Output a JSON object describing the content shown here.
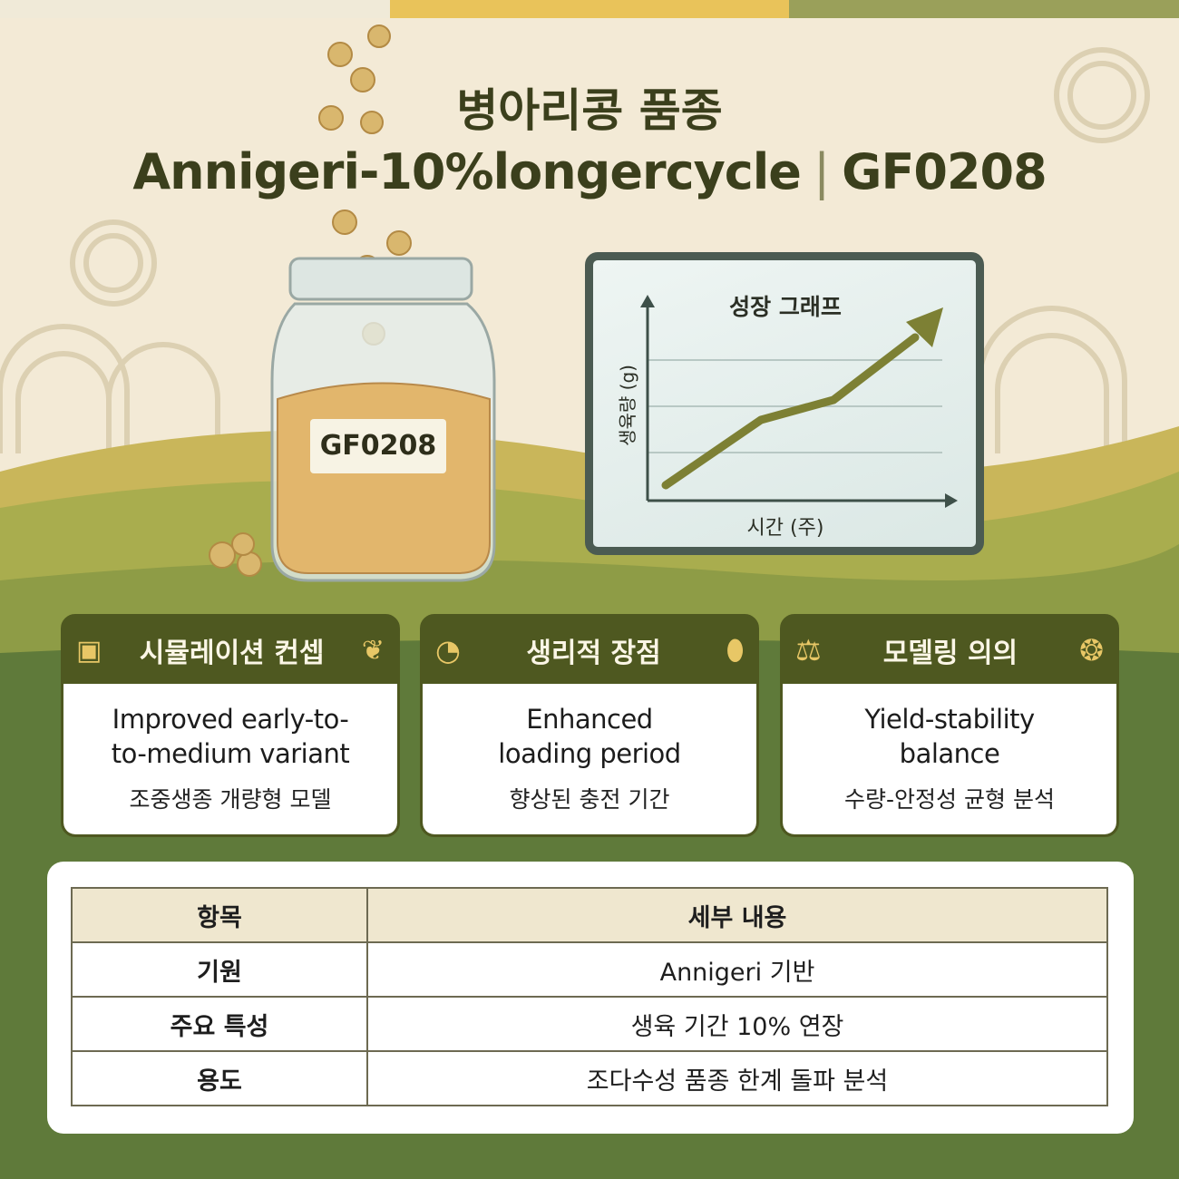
{
  "header": {
    "title_ko": "병아리콩 품종",
    "title_en": "Annigeri-10%longercycle",
    "separator": "|",
    "code": "GF0208"
  },
  "jar": {
    "label": "GF0208"
  },
  "chart_data": {
    "type": "line",
    "title": "성장 그래프",
    "xlabel": "시간 (주)",
    "ylabel": "생육량 (g)",
    "grid": true,
    "trend": "increasing",
    "line_color": "#7d8034"
  },
  "cards": [
    {
      "title": "시뮬레이션 컨셉",
      "left_icon": "chip-icon",
      "right_icon": "sprout-icon",
      "en": [
        "Improved early-to-",
        "to-medium variant"
      ],
      "ko": "조중생종 개량형 모델"
    },
    {
      "title": "생리적 장점",
      "left_icon": "clock-icon",
      "right_icon": "pea-pod-icon",
      "en": [
        "Enhanced",
        "loading period"
      ],
      "ko": "향상된 충전 기간"
    },
    {
      "title": "모델링 의의",
      "left_icon": "scale-icon",
      "right_icon": "leaf-emblem-icon",
      "en": [
        "Yield-stability",
        "balance"
      ],
      "ko": "수량-안정성 균형 분석"
    }
  ],
  "table": {
    "headers": [
      "항목",
      "세부 내용"
    ],
    "rows": [
      [
        "기원",
        "Annigeri 기반"
      ],
      [
        "주요 특성",
        "생육 기간 10% 연장"
      ],
      [
        "용도",
        "조다수성 품종 한계 돌파 분석"
      ]
    ]
  },
  "colors": {
    "cream": "#f3ead6",
    "olive_dark": "#4e5820",
    "green": "#61793a",
    "gold": "#e8c766"
  }
}
